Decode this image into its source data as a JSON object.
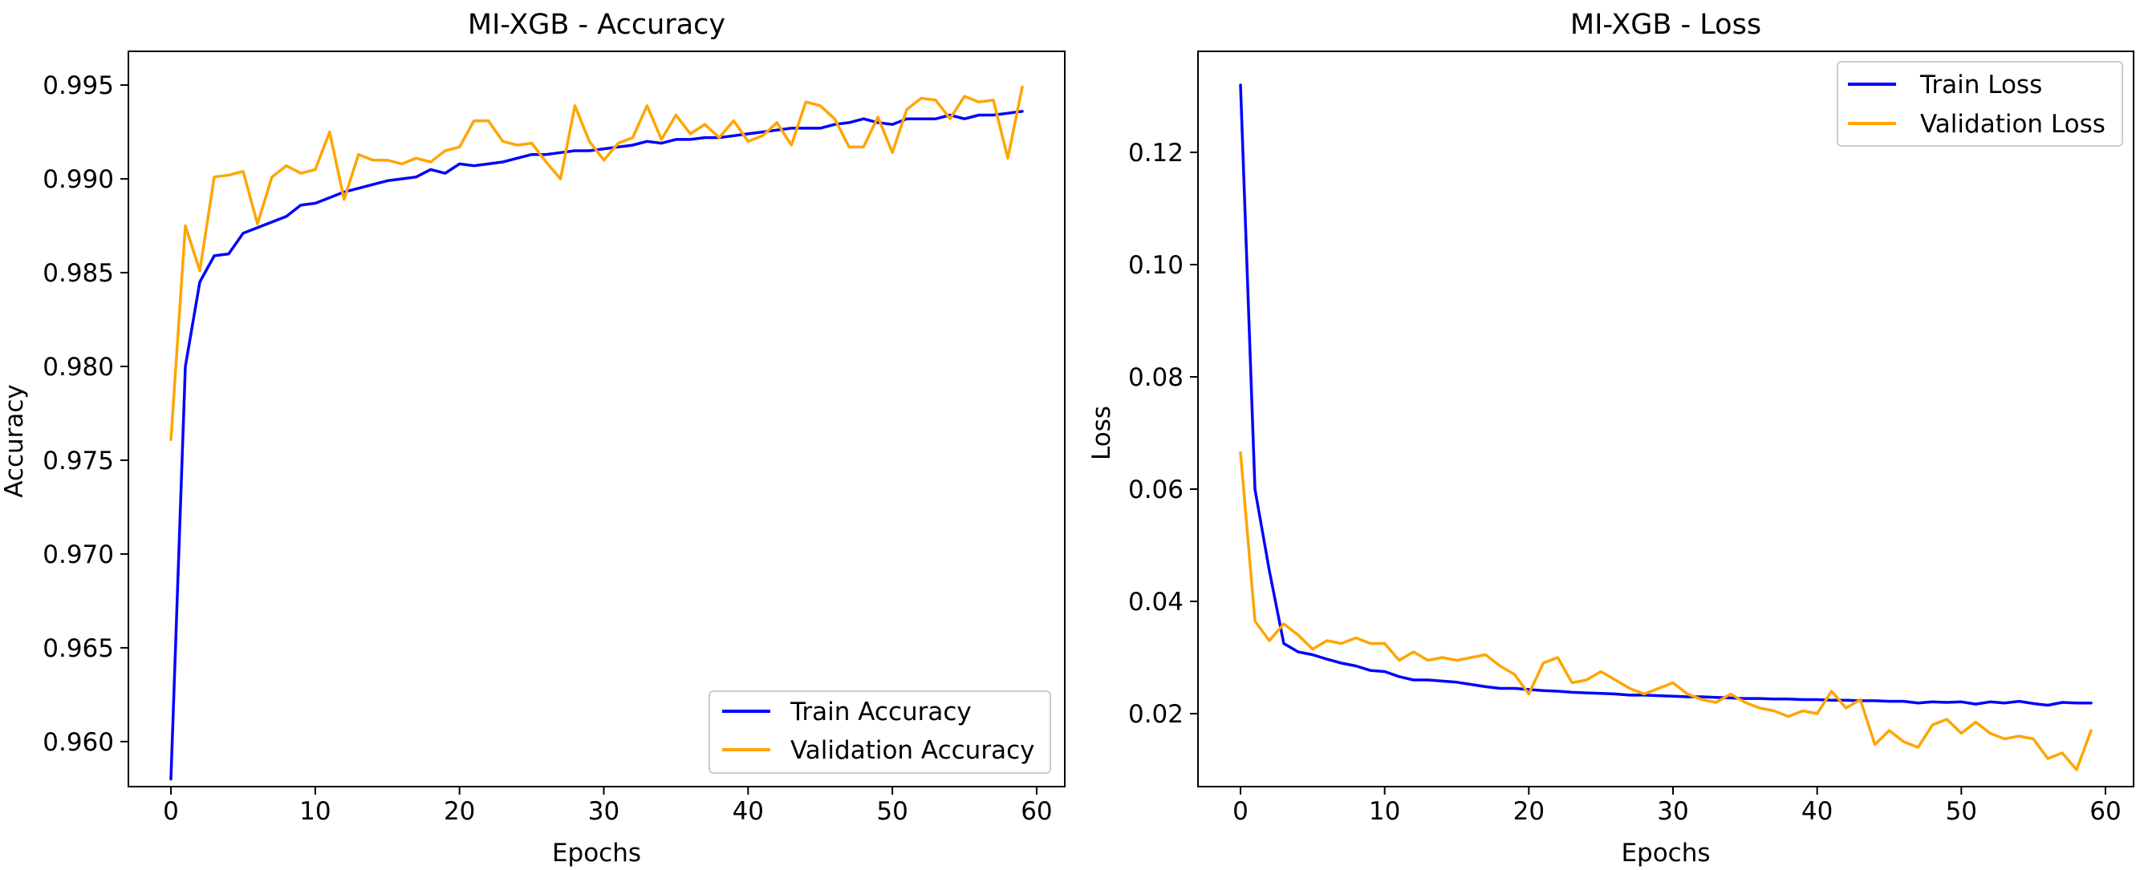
{
  "colors": {
    "train": "#0000ff",
    "validation": "#ffa500",
    "axis": "#000000",
    "background": "#ffffff"
  },
  "chart_data": [
    {
      "type": "line",
      "title": "MI-XGB - Accuracy",
      "xlabel": "Epochs",
      "ylabel": "Accuracy",
      "xlim": [
        -2.95,
        61.95
      ],
      "ylim": [
        0.9576,
        0.9968
      ],
      "xticks": [
        0,
        10,
        20,
        30,
        40,
        50,
        60
      ],
      "yticks": [
        0.96,
        0.965,
        0.97,
        0.975,
        0.98,
        0.985,
        0.99,
        0.995
      ],
      "ytick_decimals": 3,
      "grid": false,
      "legend_position": "lower-right",
      "series": [
        {
          "name": "Train Accuracy",
          "color": "#0000ff",
          "values": [
            0.958,
            0.98,
            0.9845,
            0.9859,
            0.986,
            0.9871,
            0.9874,
            0.9877,
            0.988,
            0.9886,
            0.9887,
            0.989,
            0.9893,
            0.9895,
            0.9897,
            0.9899,
            0.99,
            0.9901,
            0.9905,
            0.9903,
            0.9908,
            0.9907,
            0.9908,
            0.9909,
            0.9911,
            0.9913,
            0.9913,
            0.9914,
            0.9915,
            0.9915,
            0.9916,
            0.9917,
            0.9918,
            0.992,
            0.9919,
            0.9921,
            0.9921,
            0.9922,
            0.9922,
            0.9923,
            0.9924,
            0.9925,
            0.9926,
            0.9927,
            0.9927,
            0.9927,
            0.9929,
            0.993,
            0.9932,
            0.993,
            0.9929,
            0.9932,
            0.9932,
            0.9932,
            0.9934,
            0.9932,
            0.9934,
            0.9934,
            0.9935,
            0.9936
          ]
        },
        {
          "name": "Validation Accuracy",
          "color": "#ffa500",
          "values": [
            0.9761,
            0.9875,
            0.9851,
            0.9901,
            0.9902,
            0.9904,
            0.9876,
            0.9901,
            0.9907,
            0.9903,
            0.9905,
            0.9925,
            0.9889,
            0.9913,
            0.991,
            0.991,
            0.9908,
            0.9911,
            0.9909,
            0.9915,
            0.9917,
            0.9931,
            0.9931,
            0.992,
            0.9918,
            0.9919,
            0.9909,
            0.99,
            0.9939,
            0.992,
            0.991,
            0.9919,
            0.9922,
            0.9939,
            0.9921,
            0.9934,
            0.9924,
            0.9929,
            0.9922,
            0.9931,
            0.992,
            0.9923,
            0.993,
            0.9918,
            0.9941,
            0.9939,
            0.9932,
            0.9917,
            0.9917,
            0.9933,
            0.9914,
            0.9937,
            0.9943,
            0.9942,
            0.9932,
            0.9944,
            0.9941,
            0.9942,
            0.9911,
            0.9949
          ]
        }
      ]
    },
    {
      "type": "line",
      "title": "MI-XGB - Loss",
      "xlabel": "Epochs",
      "ylabel": "Loss",
      "xlim": [
        -2.95,
        61.95
      ],
      "ylim": [
        0.007,
        0.138
      ],
      "xticks": [
        0,
        10,
        20,
        30,
        40,
        50,
        60
      ],
      "yticks": [
        0.02,
        0.04,
        0.06,
        0.08,
        0.1,
        0.12
      ],
      "ytick_decimals": 2,
      "grid": false,
      "legend_position": "upper-right",
      "series": [
        {
          "name": "Train Loss",
          "color": "#0000ff",
          "values": [
            0.132,
            0.06,
            0.0455,
            0.0325,
            0.031,
            0.0305,
            0.0297,
            0.029,
            0.0285,
            0.0277,
            0.0275,
            0.0266,
            0.026,
            0.026,
            0.0258,
            0.0256,
            0.0252,
            0.0248,
            0.0245,
            0.0245,
            0.0243,
            0.0241,
            0.024,
            0.0238,
            0.0237,
            0.0236,
            0.0235,
            0.0233,
            0.0233,
            0.0232,
            0.0231,
            0.023,
            0.023,
            0.0229,
            0.0228,
            0.0227,
            0.0227,
            0.0226,
            0.0226,
            0.0225,
            0.0225,
            0.0224,
            0.0224,
            0.0223,
            0.0223,
            0.0222,
            0.0222,
            0.0219,
            0.0221,
            0.022,
            0.0221,
            0.0217,
            0.0221,
            0.0219,
            0.0222,
            0.0218,
            0.0215,
            0.022,
            0.0219,
            0.0219
          ]
        },
        {
          "name": "Validation Loss",
          "color": "#ffa500",
          "values": [
            0.0665,
            0.0365,
            0.033,
            0.036,
            0.034,
            0.0315,
            0.033,
            0.0325,
            0.0335,
            0.0325,
            0.0325,
            0.0295,
            0.031,
            0.0295,
            0.03,
            0.0295,
            0.03,
            0.0305,
            0.0285,
            0.027,
            0.0235,
            0.029,
            0.03,
            0.0255,
            0.026,
            0.0275,
            0.026,
            0.0245,
            0.0235,
            0.0245,
            0.0255,
            0.0235,
            0.0225,
            0.022,
            0.0235,
            0.022,
            0.021,
            0.0205,
            0.0195,
            0.0205,
            0.02,
            0.024,
            0.021,
            0.0225,
            0.0145,
            0.017,
            0.015,
            0.014,
            0.018,
            0.019,
            0.0165,
            0.0185,
            0.0165,
            0.0155,
            0.016,
            0.0155,
            0.012,
            0.013,
            0.01,
            0.017
          ]
        }
      ]
    }
  ]
}
